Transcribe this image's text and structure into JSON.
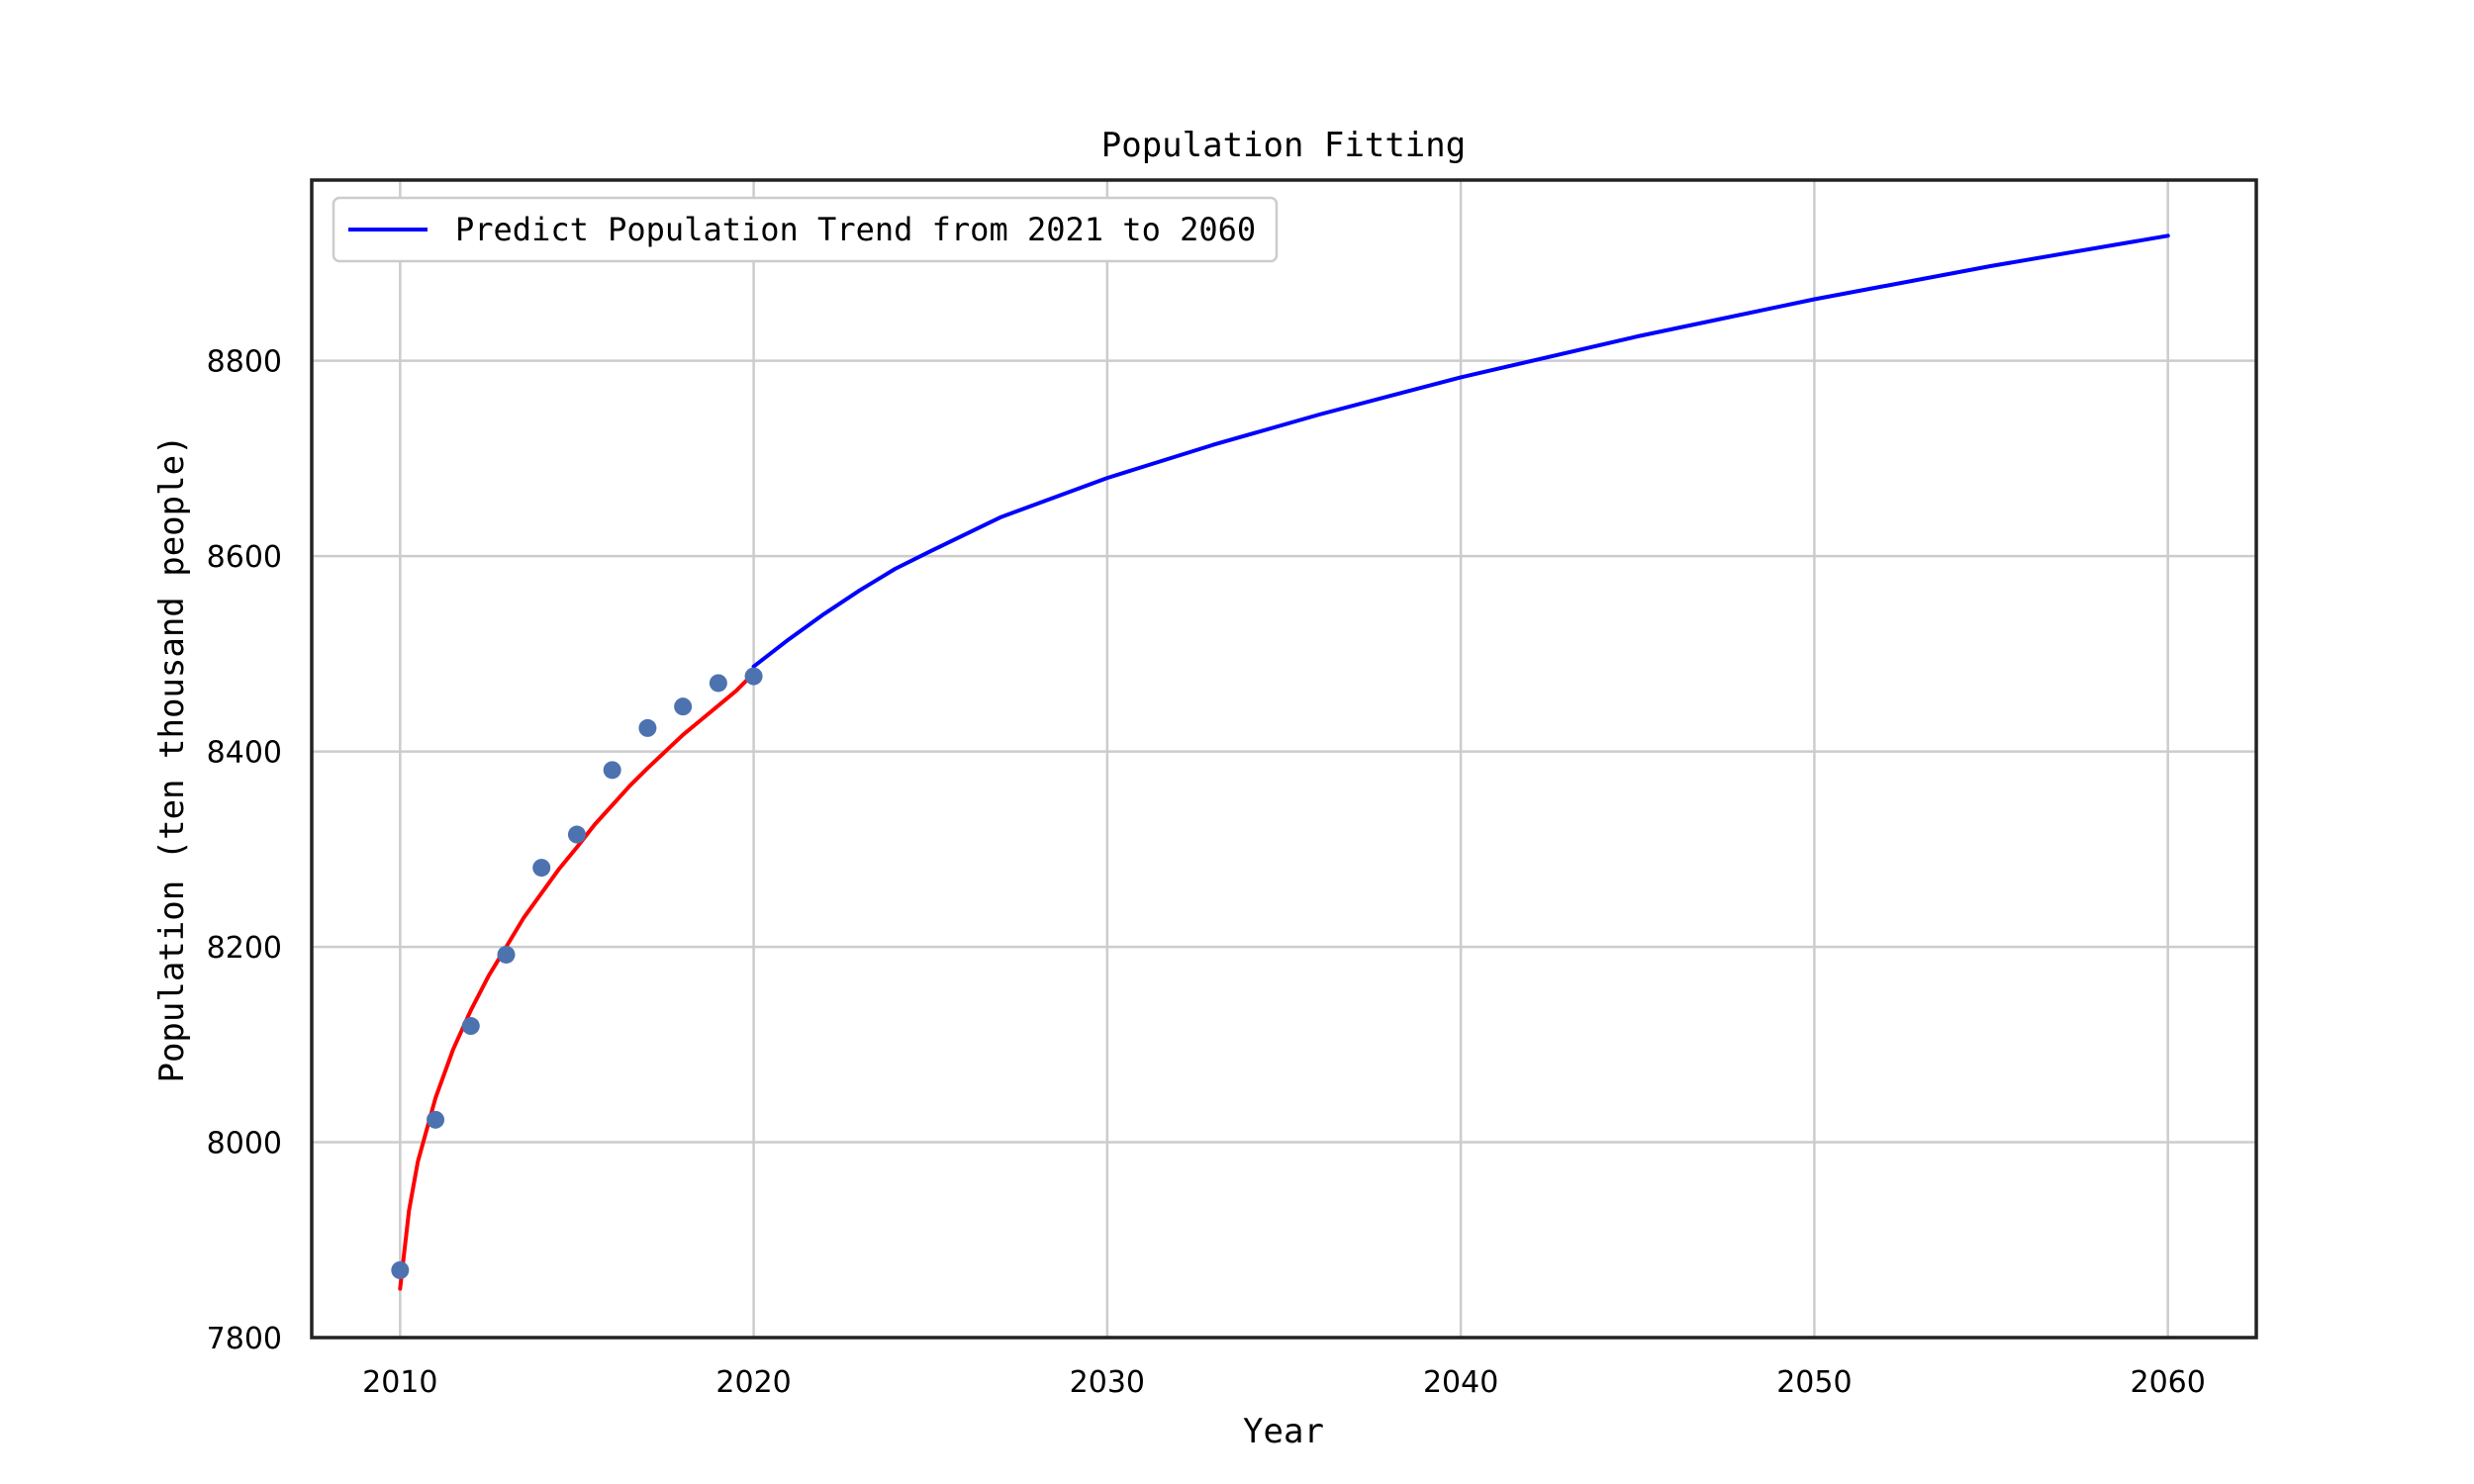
{
  "chart_data": {
    "type": "line",
    "title": "Population Fitting",
    "xlabel": "Year",
    "ylabel": "Population (ten thousand people)",
    "xlim": [
      2007.5,
      2062.5
    ],
    "ylim": [
      7800,
      8985
    ],
    "xticks": [
      2010,
      2020,
      2030,
      2040,
      2050,
      2060
    ],
    "yticks": [
      7800,
      8000,
      8200,
      8400,
      8600,
      8800
    ],
    "grid": true,
    "legend_position": "top-left",
    "series": [
      {
        "name": "",
        "kind": "scatter",
        "color": "#4c72b0",
        "x": [
          2010,
          2011,
          2012,
          2013,
          2014,
          2015,
          2016,
          2017,
          2018,
          2019,
          2020
        ],
        "y": [
          7869,
          8023,
          8119,
          8192,
          8281,
          8315,
          8381,
          8424,
          8446,
          8470,
          8477
        ]
      },
      {
        "name": "",
        "kind": "line",
        "color": "#ff0000",
        "x": [
          2010,
          2010.25,
          2010.5,
          2011,
          2011.5,
          2012,
          2012.5,
          2013,
          2013.5,
          2014,
          2014.5,
          2015,
          2015.5,
          2016,
          2016.5,
          2017,
          2017.5,
          2018,
          2018.5,
          2019,
          2019.5,
          2020
        ],
        "y": [
          7850,
          7930,
          7980,
          8045,
          8095,
          8135,
          8170,
          8200,
          8230,
          8255,
          8280,
          8302,
          8325,
          8345,
          8365,
          8383,
          8400,
          8417,
          8432,
          8447,
          8462,
          8480
        ]
      },
      {
        "name": "Predict Population Trend from 2021 to 2060",
        "kind": "line",
        "color": "#0000ff",
        "x": [
          2020,
          2021,
          2022,
          2023,
          2024,
          2025,
          2027,
          2030,
          2033,
          2036,
          2040,
          2045,
          2050,
          2055,
          2060
        ],
        "y": [
          8487,
          8515,
          8541,
          8565,
          8587,
          8605,
          8640,
          8680,
          8714,
          8745,
          8783,
          8825,
          8863,
          8897,
          8928
        ]
      }
    ]
  }
}
